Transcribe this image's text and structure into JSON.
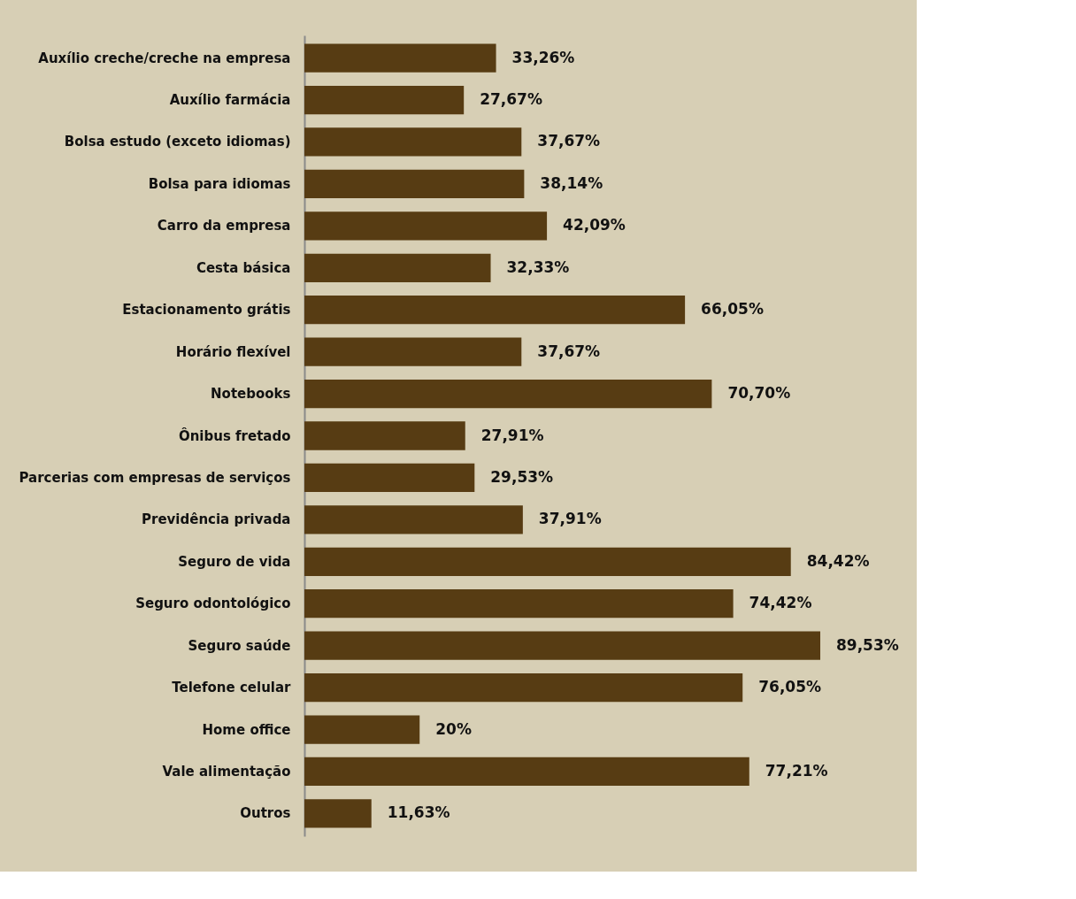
{
  "chart_data": {
    "type": "bar",
    "orientation": "horizontal",
    "color": "#573c13",
    "categories": [
      "Auxílio creche/creche na empresa",
      "Auxílio farmácia",
      "Bolsa estudo (exceto idiomas)",
      "Bolsa para idiomas",
      "Carro da empresa",
      "Cesta básica",
      "Estacionamento grátis",
      "Horário flexível",
      "Notebooks",
      "Ônibus fretado",
      "Parcerias com empresas de serviços",
      "Previdência privada",
      "Seguro de vida",
      "Seguro odontológico",
      "Seguro saúde",
      "Telefone celular",
      "Home office",
      "Vale alimentação",
      "Outros"
    ],
    "values": [
      33.26,
      27.67,
      37.67,
      38.14,
      42.09,
      32.33,
      66.05,
      37.67,
      70.7,
      27.91,
      29.53,
      37.91,
      84.42,
      74.42,
      89.53,
      76.05,
      20,
      77.21,
      11.63
    ],
    "value_labels": [
      "33,26%",
      "27,67%",
      "37,67%",
      "38,14%",
      "42,09%",
      "32,33%",
      "66,05%",
      "37,67%",
      "70,70%",
      "27,91%",
      "29,53%",
      "37,91%",
      "84,42%",
      "74,42%",
      "89,53%",
      "76,05%",
      "20%",
      "77,21%",
      "11,63%"
    ],
    "grid": false
  }
}
